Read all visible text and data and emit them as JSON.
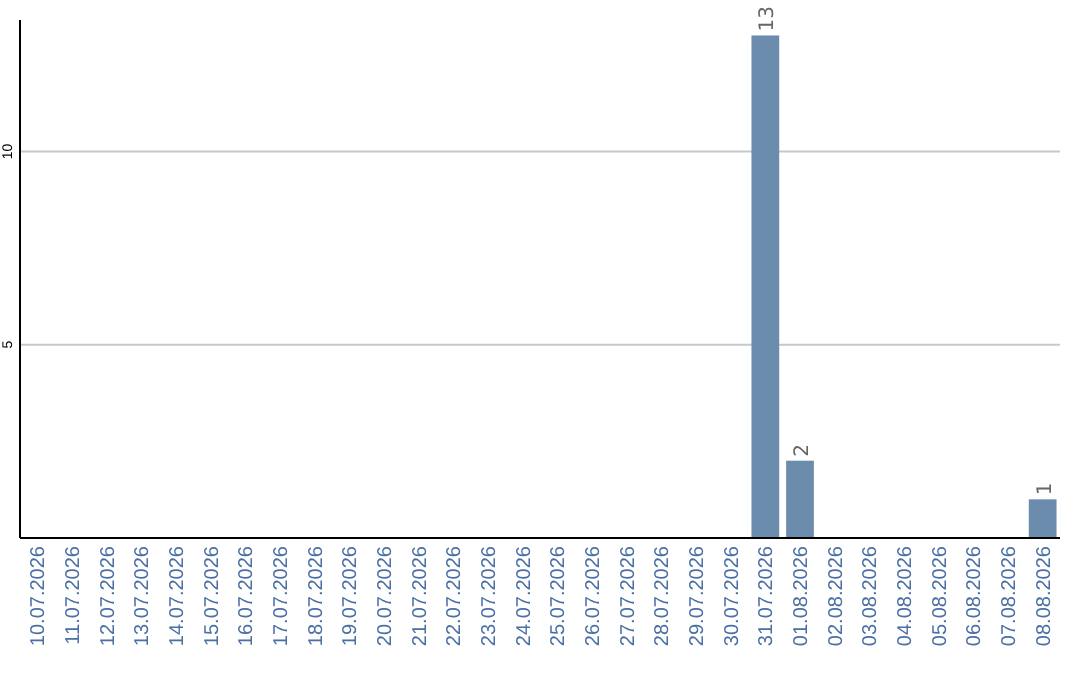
{
  "chart_data": {
    "type": "bar",
    "categories": [
      "10.07.2026",
      "11.07.2026",
      "12.07.2026",
      "13.07.2026",
      "14.07.2026",
      "15.07.2026",
      "16.07.2026",
      "17.07.2026",
      "18.07.2026",
      "19.07.2026",
      "20.07.2026",
      "21.07.2026",
      "22.07.2026",
      "23.07.2026",
      "24.07.2026",
      "25.07.2026",
      "26.07.2026",
      "27.07.2026",
      "28.07.2026",
      "29.07.2026",
      "30.07.2026",
      "31.07.2026",
      "01.08.2026",
      "02.08.2026",
      "03.08.2026",
      "04.08.2026",
      "05.08.2026",
      "06.08.2026",
      "07.08.2026",
      "08.08.2026"
    ],
    "values": [
      0,
      0,
      0,
      0,
      0,
      0,
      0,
      0,
      0,
      0,
      0,
      0,
      0,
      0,
      0,
      0,
      0,
      0,
      0,
      0,
      0,
      13,
      2,
      0,
      0,
      0,
      0,
      0,
      0,
      1
    ],
    "value_labels": [
      null,
      null,
      null,
      null,
      null,
      null,
      null,
      null,
      null,
      null,
      null,
      null,
      null,
      null,
      null,
      null,
      null,
      null,
      null,
      null,
      null,
      "13",
      "2",
      null,
      null,
      null,
      null,
      null,
      null,
      "1"
    ],
    "color": "#6b8cac",
    "ylim": [
      0,
      13.4
    ],
    "yticks": [
      5,
      10
    ],
    "grid": "y"
  }
}
